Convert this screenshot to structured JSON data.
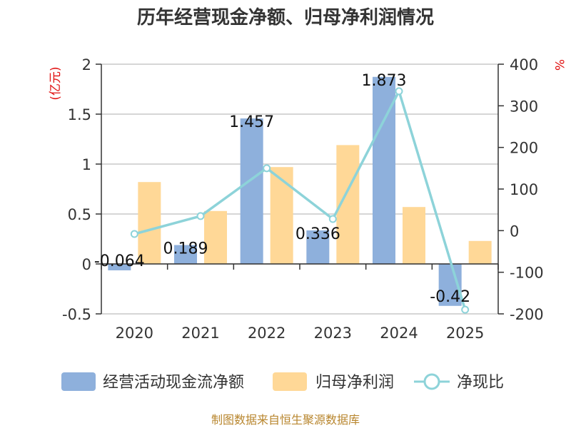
{
  "chart_data": {
    "type": "bar",
    "title": "历年经营现金净额、归母净利润情况",
    "categories": [
      "2020",
      "2021",
      "2022",
      "2023",
      "2024",
      "2025"
    ],
    "series": [
      {
        "name": "经营活动现金流净额",
        "kind": "bar",
        "axis": "left",
        "color": "#8eb0dc",
        "values": [
          -0.064,
          0.189,
          1.457,
          0.336,
          1.873,
          -0.42
        ]
      },
      {
        "name": "归母净利润",
        "kind": "bar",
        "axis": "left",
        "color": "#ffd897",
        "values": [
          0.82,
          0.53,
          0.97,
          1.19,
          0.57,
          0.23
        ]
      },
      {
        "name": "净现比",
        "kind": "line",
        "axis": "right",
        "color": "#8dd3d9",
        "values": [
          -8,
          35,
          150,
          28,
          335,
          -190
        ]
      }
    ],
    "data_labels": [
      "-0.064",
      "0.189",
      "1.457",
      "0.336",
      "1.873",
      "-0.42"
    ],
    "left_axis": {
      "unit": "(亿元)",
      "min": -0.5,
      "max": 2,
      "ticks": [
        "-0.5",
        "0",
        "0.5",
        "1",
        "1.5",
        "2"
      ],
      "tick_values": [
        -0.5,
        0,
        0.5,
        1,
        1.5,
        2
      ]
    },
    "right_axis": {
      "unit": "%",
      "min": -200,
      "max": 400,
      "ticks": [
        "-200",
        "-100",
        "0",
        "100",
        "200",
        "300",
        "400"
      ],
      "tick_values": [
        -200,
        -100,
        0,
        100,
        200,
        300,
        400
      ]
    },
    "legend_position": "bottom"
  },
  "footer": {
    "source": "制图数据来自恒生聚源数据库"
  }
}
